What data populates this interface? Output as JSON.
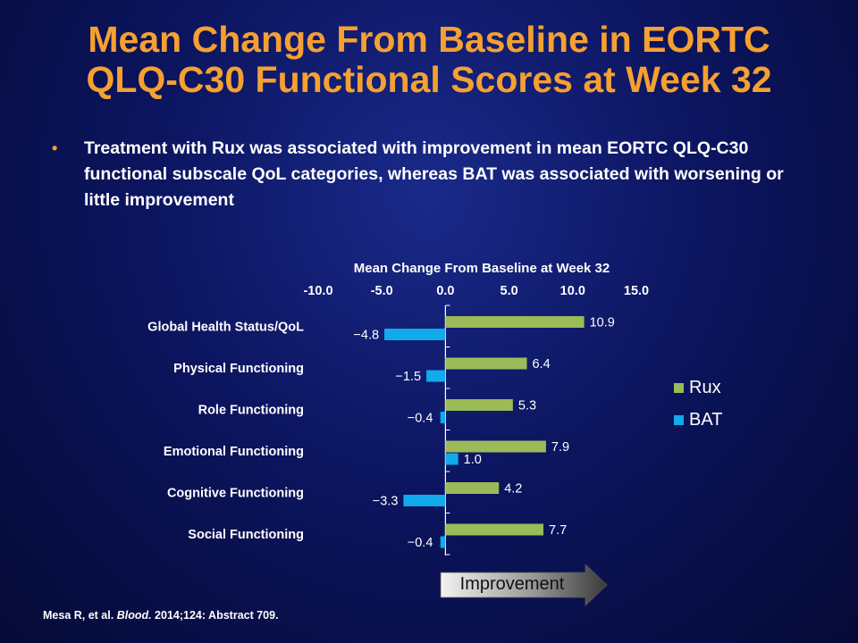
{
  "slide": {
    "title_line1": "Mean Change From Baseline in EORTC",
    "title_line2": "QLQ-C30 Functional Scores at Week 32",
    "bullet_marker": "•",
    "bullet_text": "Treatment with Rux was associated with improvement in mean EORTC QLQ-C30 functional subscale QoL categories, whereas BAT was associated with worsening or little improvement",
    "arrow_label": "Improvement",
    "citation_authors": "Mesa R, et al. ",
    "citation_journal": "Blood.",
    "citation_rest": " 2014;124: Abstract 709."
  },
  "colors": {
    "title": "#f5a031",
    "rux": "#9bbb59",
    "bat": "#11aaea",
    "text": "#ffffff",
    "arrow": "#3a3a3a"
  },
  "chart_data": {
    "type": "bar",
    "orientation": "horizontal",
    "title": "Mean Change From Baseline at Week 32",
    "categories": [
      "Global Health Status/QoL",
      "Physical Functioning",
      "Role Functioning",
      "Emotional Functioning",
      "Cognitive Functioning",
      "Social Functioning"
    ],
    "series": [
      {
        "name": "Rux",
        "values": [
          10.9,
          6.4,
          5.3,
          7.9,
          4.2,
          7.7
        ],
        "labels": [
          "10.9",
          "6.4",
          "5.3",
          "7.9",
          "4.2",
          "7.7"
        ]
      },
      {
        "name": "BAT",
        "values": [
          -4.8,
          -1.5,
          -0.4,
          1.0,
          -3.3,
          -0.4
        ],
        "labels": [
          "−4.8",
          "−1.5",
          "−0.4",
          "1.0",
          "−3.3",
          "−0.4"
        ]
      }
    ],
    "xlim": [
      -10,
      15
    ],
    "xticks": [
      "-10.0",
      "-5.0",
      "0.0",
      "5.0",
      "10.0",
      "15.0"
    ],
    "xaxis_position": "top",
    "legend": "right",
    "grid": false
  }
}
